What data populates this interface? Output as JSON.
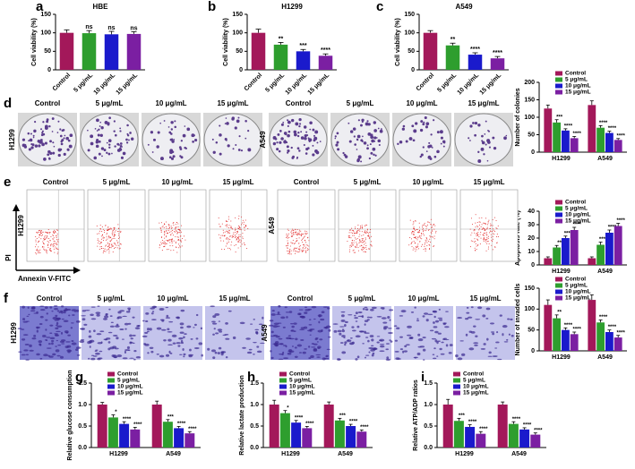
{
  "chart_data": [
    {
      "type": "bar",
      "panel": "a",
      "title": "HBE",
      "y_label": "Cell viability (%)",
      "categories": [
        "Control",
        "5 μg/mL",
        "10 μg/mL",
        "15 μg/mL"
      ],
      "values": [
        100,
        99,
        96,
        97
      ],
      "errors": [
        8,
        7,
        8,
        6
      ],
      "annotations": [
        null,
        "ns",
        "ns",
        "ns"
      ],
      "colors": [
        "#a3185a",
        "#2e9e2e",
        "#1a1acc",
        "#7b1fa2"
      ],
      "ylim": [
        0,
        150
      ],
      "yticks": [
        0,
        50,
        100,
        150
      ]
    },
    {
      "type": "bar",
      "panel": "b",
      "title": "H1299",
      "y_label": "Cell viability (%)",
      "categories": [
        "Control",
        "5 μg/mL",
        "10 μg/mL",
        "15 μg/mL"
      ],
      "values": [
        100,
        68,
        50,
        38
      ],
      "errors": [
        10,
        6,
        5,
        5
      ],
      "annotations": [
        null,
        "**",
        "***",
        "****"
      ],
      "colors": [
        "#a3185a",
        "#2e9e2e",
        "#1a1acc",
        "#7b1fa2"
      ],
      "ylim": [
        0,
        150
      ],
      "yticks": [
        0,
        50,
        100,
        150
      ]
    },
    {
      "type": "bar",
      "panel": "c",
      "title": "A549",
      "y_label": "Cell viability (%)",
      "categories": [
        "Control",
        "5 μg/mL",
        "10 μg/mL",
        "15 μg/mL"
      ],
      "values": [
        100,
        66,
        41,
        31
      ],
      "errors": [
        6,
        6,
        5,
        5
      ],
      "annotations": [
        null,
        "**",
        "****",
        "****"
      ],
      "colors": [
        "#a3185a",
        "#2e9e2e",
        "#1a1acc",
        "#7b1fa2"
      ],
      "ylim": [
        0,
        150
      ],
      "yticks": [
        0,
        50,
        100,
        150
      ]
    },
    {
      "type": "grouped-bar",
      "y_label": "Number of colonies",
      "categories": [
        "H1299",
        "A549"
      ],
      "ylim": [
        0,
        200
      ],
      "yticks": [
        0,
        50,
        100,
        150,
        200
      ],
      "series": [
        {
          "name": "Control",
          "color": "#a3185a",
          "values": [
            125,
            135
          ],
          "errors": [
            10,
            12
          ],
          "annotations": [
            null,
            null
          ]
        },
        {
          "name": "5 μg/mL",
          "color": "#2e9e2e",
          "values": [
            85,
            70
          ],
          "errors": [
            8,
            6
          ],
          "annotations": [
            "***",
            "****"
          ]
        },
        {
          "name": "10 μg/mL",
          "color": "#1a1acc",
          "values": [
            62,
            55
          ],
          "errors": [
            5,
            5
          ],
          "annotations": [
            "****",
            "****"
          ]
        },
        {
          "name": "15 μg/mL",
          "color": "#7b1fa2",
          "values": [
            40,
            35
          ],
          "errors": [
            5,
            4
          ],
          "annotations": [
            "****",
            "****"
          ]
        }
      ]
    },
    {
      "type": "grouped-bar",
      "y_label": "Apoptosis rate (%)",
      "categories": [
        "H1299",
        "A549"
      ],
      "ylim": [
        0,
        40
      ],
      "yticks": [
        0,
        10,
        20,
        30,
        40
      ],
      "series": [
        {
          "name": "Control",
          "color": "#a3185a",
          "values": [
            5,
            5
          ],
          "errors": [
            1,
            1
          ],
          "annotations": [
            null,
            null
          ]
        },
        {
          "name": "5 μg/mL",
          "color": "#2e9e2e",
          "values": [
            13,
            15
          ],
          "errors": [
            1.5,
            2
          ],
          "annotations": [
            "**",
            "****"
          ]
        },
        {
          "name": "10 μg/mL",
          "color": "#1a1acc",
          "values": [
            20,
            24
          ],
          "errors": [
            1.5,
            2
          ],
          "annotations": [
            "****",
            "****"
          ]
        },
        {
          "name": "15 μg/mL",
          "color": "#7b1fa2",
          "values": [
            26,
            29
          ],
          "errors": [
            2,
            2
          ],
          "annotations": [
            "****",
            "****"
          ]
        }
      ]
    },
    {
      "type": "grouped-bar",
      "y_label": "Number of invaded cells",
      "categories": [
        "H1299",
        "A549"
      ],
      "ylim": [
        0,
        150
      ],
      "yticks": [
        0,
        50,
        100,
        150
      ],
      "series": [
        {
          "name": "Control",
          "color": "#a3185a",
          "values": [
            110,
            122
          ],
          "errors": [
            12,
            12
          ],
          "annotations": [
            null,
            null
          ]
        },
        {
          "name": "5 μg/mL",
          "color": "#2e9e2e",
          "values": [
            78,
            68
          ],
          "errors": [
            8,
            6
          ],
          "annotations": [
            "**",
            "****"
          ]
        },
        {
          "name": "10 μg/mL",
          "color": "#1a1acc",
          "values": [
            50,
            45
          ],
          "errors": [
            5,
            5
          ],
          "annotations": [
            "****",
            "****"
          ]
        },
        {
          "name": "15 μg/mL",
          "color": "#7b1fa2",
          "values": [
            40,
            32
          ],
          "errors": [
            5,
            5
          ],
          "annotations": [
            "****",
            "****"
          ]
        }
      ]
    },
    {
      "type": "grouped-bar",
      "panel": "g",
      "y_label": "Relative glucose consumption",
      "categories": [
        "H1299",
        "A549"
      ],
      "ylim": [
        0,
        1.5
      ],
      "yticks": [
        {
          "value": 0,
          "label": "0.0"
        },
        0.5,
        {
          "value": 1,
          "label": "1.0"
        },
        1.5
      ],
      "series": [
        {
          "name": "Control",
          "color": "#a3185a",
          "values": [
            1.0,
            1.0
          ],
          "errors": [
            0.05,
            0.08
          ],
          "annotations": [
            null,
            null
          ]
        },
        {
          "name": "5 μg/mL",
          "color": "#2e9e2e",
          "values": [
            0.7,
            0.6
          ],
          "errors": [
            0.06,
            0.05
          ],
          "annotations": [
            "*",
            "***"
          ]
        },
        {
          "name": "10 μg/mL",
          "color": "#1a1acc",
          "values": [
            0.55,
            0.45
          ],
          "errors": [
            0.05,
            0.04
          ],
          "annotations": [
            "****",
            "****"
          ]
        },
        {
          "name": "15 μg/mL",
          "color": "#7b1fa2",
          "values": [
            0.42,
            0.33
          ],
          "errors": [
            0.05,
            0.04
          ],
          "annotations": [
            "****",
            "****"
          ]
        }
      ]
    },
    {
      "type": "grouped-bar",
      "panel": "h",
      "y_label": "Relative lactate production",
      "categories": [
        "H1299",
        "A549"
      ],
      "ylim": [
        0,
        1.5
      ],
      "yticks": [
        {
          "value": 0,
          "label": "0.0"
        },
        0.5,
        {
          "value": 1,
          "label": "1.0"
        },
        1.5
      ],
      "series": [
        {
          "name": "Control",
          "color": "#a3185a",
          "values": [
            1.0,
            1.0
          ],
          "errors": [
            0.1,
            0.06
          ],
          "annotations": [
            null,
            null
          ]
        },
        {
          "name": "5 μg/mL",
          "color": "#2e9e2e",
          "values": [
            0.8,
            0.63
          ],
          "errors": [
            0.06,
            0.05
          ],
          "annotations": [
            "*",
            "***"
          ]
        },
        {
          "name": "10 μg/mL",
          "color": "#1a1acc",
          "values": [
            0.58,
            0.5
          ],
          "errors": [
            0.05,
            0.04
          ],
          "annotations": [
            "****",
            "****"
          ]
        },
        {
          "name": "15 μg/mL",
          "color": "#7b1fa2",
          "values": [
            0.45,
            0.37
          ],
          "errors": [
            0.04,
            0.04
          ],
          "annotations": [
            "****",
            "****"
          ]
        }
      ]
    },
    {
      "type": "grouped-bar",
      "panel": "i",
      "y_label": "Relative ATP/ADP ratios",
      "categories": [
        "H1299",
        "A549"
      ],
      "ylim": [
        0,
        1.5
      ],
      "yticks": [
        {
          "value": 0,
          "label": "0.0"
        },
        0.5,
        {
          "value": 1,
          "label": "1.0"
        },
        1.5
      ],
      "series": [
        {
          "name": "Control",
          "color": "#a3185a",
          "values": [
            1.0,
            1.0
          ],
          "errors": [
            0.12,
            0.06
          ],
          "annotations": [
            null,
            null
          ]
        },
        {
          "name": "5 μg/mL",
          "color": "#2e9e2e",
          "values": [
            0.62,
            0.55
          ],
          "errors": [
            0.06,
            0.05
          ],
          "annotations": [
            "***",
            "****"
          ]
        },
        {
          "name": "10 μg/mL",
          "color": "#1a1acc",
          "values": [
            0.48,
            0.42
          ],
          "errors": [
            0.05,
            0.04
          ],
          "annotations": [
            "****",
            "****"
          ]
        },
        {
          "name": "15 μg/mL",
          "color": "#7b1fa2",
          "values": [
            0.32,
            0.3
          ],
          "errors": [
            0.05,
            0.04
          ],
          "annotations": [
            "****",
            "****"
          ]
        }
      ]
    }
  ],
  "photo_panels": [
    {
      "panel": "d",
      "groups": [
        {
          "cell": "H1299",
          "columns": [
            "Control",
            "5 μg/mL",
            "10 μg/mL",
            "15 μg/mL"
          ]
        },
        {
          "cell": "A549",
          "columns": [
            "Control",
            "5 μg/mL",
            "10 μg/mL",
            "15 μg/mL"
          ]
        }
      ]
    },
    {
      "panel": "e",
      "y_label": "PI",
      "x_label": "Annexin V-FITC",
      "groups": [
        {
          "cell": "H1299",
          "columns": [
            "Control",
            "5 μg/mL",
            "10 μg/mL",
            "15 μg/mL"
          ]
        },
        {
          "cell": "A549",
          "columns": [
            "Control",
            "5 μg/mL",
            "10 μg/mL",
            "15 μg/mL"
          ]
        }
      ]
    },
    {
      "panel": "f",
      "groups": [
        {
          "cell": "H1299",
          "columns": [
            "Control",
            "5 μg/mL",
            "10 μg/mL",
            "15 μg/mL"
          ]
        },
        {
          "cell": "A549",
          "columns": [
            "Control",
            "5 μg/mL",
            "10 μg/mL",
            "15 μg/mL"
          ]
        }
      ]
    }
  ]
}
